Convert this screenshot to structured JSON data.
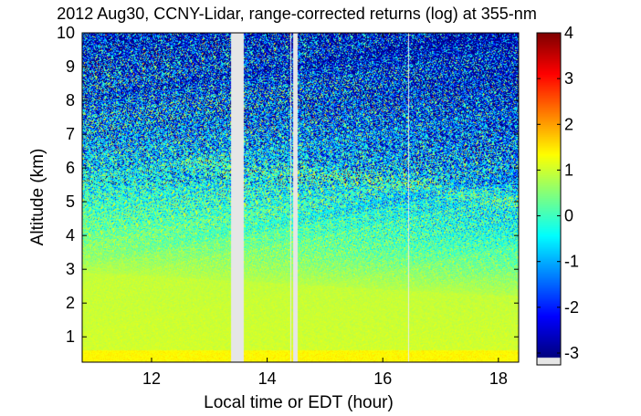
{
  "chart_data": {
    "type": "heatmap",
    "title": "2012 Aug30, CCNY-Lidar, range-corrected returns (log) at 355-nm",
    "xlabel": "Local time or EDT (hour)",
    "ylabel": "Altitude (km)",
    "xlim": [
      10.8,
      18.35
    ],
    "ylim": [
      0.25,
      10
    ],
    "x_ticks": [
      12,
      14,
      16,
      18
    ],
    "y_ticks": [
      1,
      2,
      3,
      4,
      5,
      6,
      7,
      8,
      9,
      10
    ],
    "colorbar": {
      "range": [
        -3.1,
        4
      ],
      "ticks": [
        -3,
        -2,
        -1,
        0,
        1,
        2,
        3,
        4
      ],
      "colormap": "jet",
      "missing_color": "#e6e6e6"
    },
    "data_gaps_hours": [
      [
        13.37,
        13.6
      ],
      [
        14.45,
        14.52
      ]
    ],
    "thin_gaps_hours": [
      14.41,
      16.45
    ],
    "layers": [
      {
        "type": "boundary_layer_top",
        "x": [
          10.8,
          12,
          14,
          16,
          18.35
        ],
        "altitude_km": [
          2.9,
          2.8,
          2.6,
          2.4,
          2.2
        ]
      },
      {
        "type": "elevated_aerosol",
        "x": [
          12.5,
          14,
          15.5,
          16.3,
          17.5,
          18.35
        ],
        "altitude_km": [
          6.2,
          5.9,
          5.7,
          5.6,
          5.2,
          5.0
        ]
      }
    ],
    "grid": false,
    "legend": "none"
  }
}
